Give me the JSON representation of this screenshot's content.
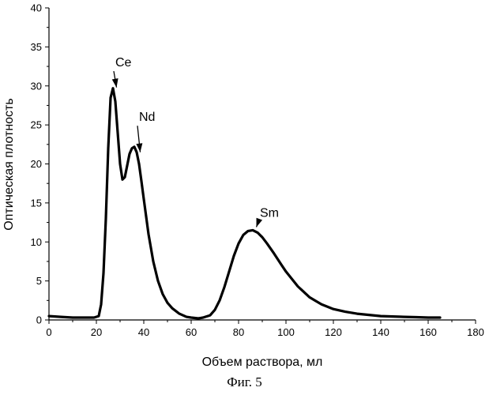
{
  "chart_data": {
    "type": "line",
    "xlabel": "Объем раствора, мл",
    "ylabel": "Оптическая плотность",
    "xlim": [
      0,
      180
    ],
    "ylim": [
      0,
      40
    ],
    "xticks": [
      0,
      20,
      40,
      60,
      80,
      100,
      120,
      140,
      160,
      180
    ],
    "yticks": [
      0,
      5,
      10,
      15,
      20,
      25,
      30,
      35,
      40
    ],
    "grid": false,
    "series": [
      {
        "x": [
          0,
          5,
          10,
          15,
          19,
          21,
          22,
          23,
          24,
          25,
          26,
          27,
          28,
          29,
          30,
          31,
          32,
          33,
          34,
          35,
          36,
          37,
          38,
          39,
          40,
          42,
          44,
          46,
          48,
          50,
          52,
          55,
          58,
          60,
          63,
          65,
          68,
          70,
          72,
          74,
          76,
          78,
          80,
          82,
          84,
          86,
          88,
          90,
          92,
          95,
          98,
          100,
          105,
          110,
          115,
          120,
          125,
          130,
          135,
          140,
          145,
          150,
          155,
          160,
          165
        ],
        "y": [
          0.5,
          0.4,
          0.3,
          0.3,
          0.3,
          0.5,
          2,
          6,
          13,
          22,
          28.5,
          29.7,
          28,
          24,
          20,
          18,
          18.3,
          19.8,
          21.3,
          22,
          22.2,
          21.5,
          20,
          17.8,
          15.5,
          11,
          7.5,
          5,
          3.3,
          2.2,
          1.5,
          0.8,
          0.4,
          0.3,
          0.2,
          0.3,
          0.6,
          1.3,
          2.5,
          4.2,
          6.2,
          8.2,
          9.8,
          10.9,
          11.4,
          11.5,
          11.2,
          10.6,
          9.8,
          8.5,
          7.1,
          6.2,
          4.3,
          2.9,
          2,
          1.4,
          1.05,
          0.8,
          0.65,
          0.5,
          0.45,
          0.4,
          0.35,
          0.3,
          0.3
        ]
      }
    ],
    "annotations": [
      {
        "text": "Ce",
        "x": 28,
        "y": 32.5
      },
      {
        "text": "Nd",
        "x": 38,
        "y": 25.5
      },
      {
        "text": "Sm",
        "x": 89,
        "y": 13.2
      }
    ]
  },
  "caption": "Фиг. 5"
}
